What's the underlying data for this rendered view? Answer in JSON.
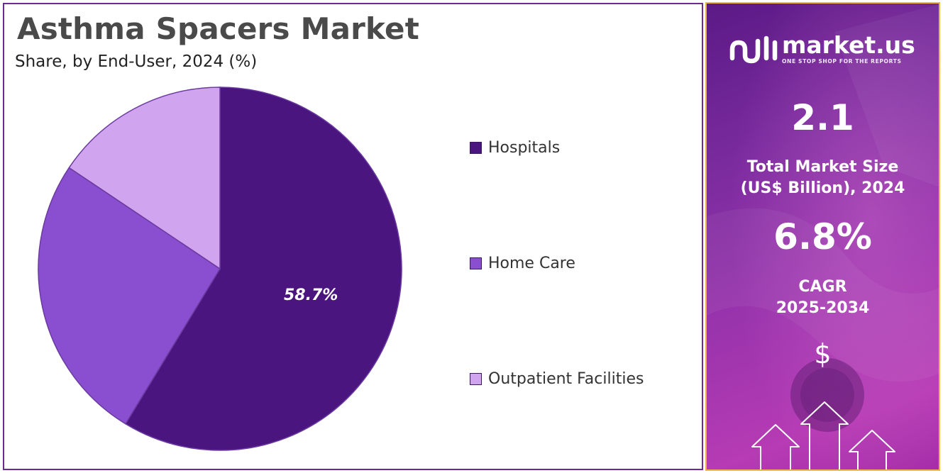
{
  "header": {
    "title": "Asthma Spacers Market",
    "subtitle": "Share, by End-User, 2024 (%)"
  },
  "chart_data": {
    "type": "pie",
    "categories": [
      "Hospitals",
      "Home Care",
      "Outpatient Facilities"
    ],
    "values": [
      58.7,
      25.7,
      15.6
    ],
    "colors": [
      "#4b1580",
      "#8a4fd0",
      "#d0a4ee"
    ],
    "data_labels": [
      "58.7%",
      "",
      ""
    ],
    "legend_position": "right",
    "start_angle": "12 o'clock, clockwise"
  },
  "side_panel": {
    "brand_name": "market.us",
    "brand_tagline": "ONE STOP SHOP FOR THE REPORTS",
    "market_size_value": "2.1",
    "market_size_label_line1": "Total Market Size",
    "market_size_label_line2": "(US$ Billion), 2024",
    "cagr_value": "6.8%",
    "cagr_label_line1": "CAGR",
    "cagr_label_line2": "2025-2034",
    "currency_symbol": "$",
    "icons": [
      "market-us-logo-icon",
      "dollar-icon",
      "growth-arrows-icon"
    ]
  }
}
